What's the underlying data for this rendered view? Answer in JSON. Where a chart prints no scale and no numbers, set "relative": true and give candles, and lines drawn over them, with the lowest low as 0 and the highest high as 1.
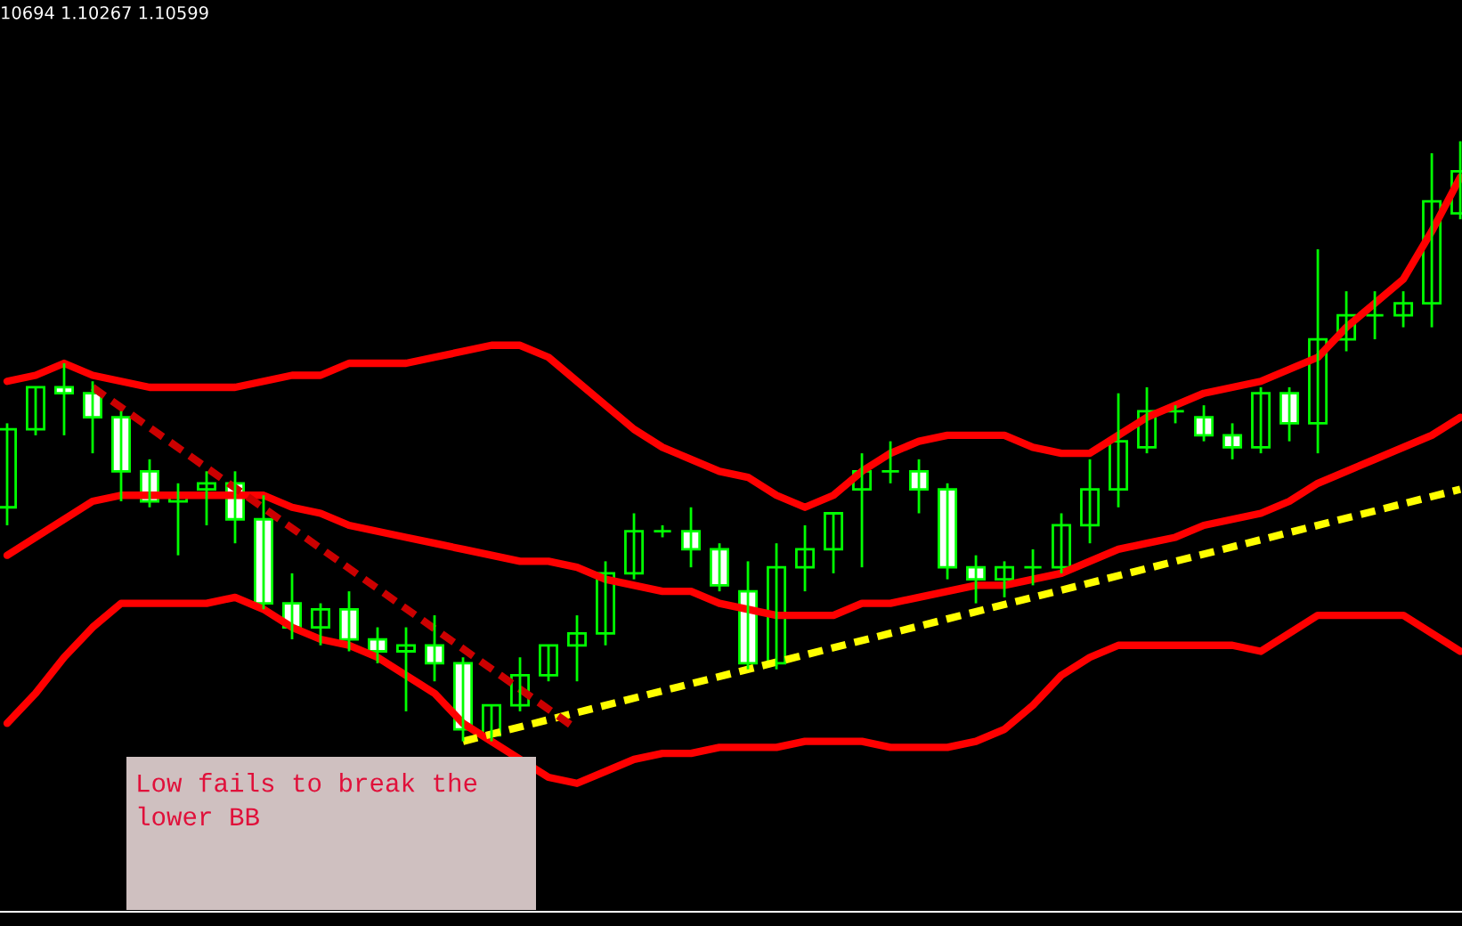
{
  "chart_data": {
    "type": "candlestick",
    "relative": true,
    "color": "#00ff00",
    "categories": [
      null,
      null,
      null,
      null,
      null,
      null,
      null,
      null,
      null,
      null,
      null,
      null,
      null,
      null,
      null,
      null,
      null,
      null,
      null,
      null,
      null,
      null,
      null,
      null,
      null,
      null,
      null,
      null,
      null,
      null,
      null,
      null,
      null,
      null,
      null,
      null,
      null,
      null,
      null,
      null,
      null,
      null,
      null,
      null,
      null,
      null,
      null,
      null,
      null,
      null,
      null,
      null
    ],
    "ohlc": [
      [
        0.39,
        0.53,
        0.36,
        0.52
      ],
      [
        0.52,
        0.59,
        0.51,
        0.59
      ],
      [
        0.59,
        0.63,
        0.51,
        0.58
      ],
      [
        0.58,
        0.6,
        0.48,
        0.54
      ],
      [
        0.54,
        0.55,
        0.4,
        0.45
      ],
      [
        0.45,
        0.47,
        0.39,
        0.4
      ],
      [
        0.4,
        0.43,
        0.31,
        0.41
      ],
      [
        0.42,
        0.45,
        0.36,
        0.43
      ],
      [
        0.43,
        0.45,
        0.33,
        0.37
      ],
      [
        0.37,
        0.41,
        0.22,
        0.23
      ],
      [
        0.23,
        0.28,
        0.17,
        0.19
      ],
      [
        0.19,
        0.23,
        0.16,
        0.22
      ],
      [
        0.22,
        0.25,
        0.15,
        0.17
      ],
      [
        0.17,
        0.19,
        0.13,
        0.15
      ],
      [
        0.15,
        0.19,
        0.05,
        0.16
      ],
      [
        0.16,
        0.21,
        0.1,
        0.13
      ],
      [
        0.13,
        0.14,
        0.0,
        0.02
      ],
      [
        0.01,
        0.06,
        0.0,
        0.06
      ],
      [
        0.06,
        0.14,
        0.05,
        0.11
      ],
      [
        0.11,
        0.16,
        0.1,
        0.16
      ],
      [
        0.16,
        0.21,
        0.1,
        0.18
      ],
      [
        0.18,
        0.3,
        0.16,
        0.28
      ],
      [
        0.28,
        0.38,
        0.27,
        0.35
      ],
      [
        0.35,
        0.36,
        0.34,
        0.35
      ],
      [
        0.35,
        0.39,
        0.29,
        0.32
      ],
      [
        0.32,
        0.33,
        0.25,
        0.26
      ],
      [
        0.25,
        0.3,
        0.12,
        0.13
      ],
      [
        0.13,
        0.33,
        0.12,
        0.29
      ],
      [
        0.29,
        0.36,
        0.25,
        0.32
      ],
      [
        0.32,
        0.38,
        0.28,
        0.38
      ],
      [
        0.42,
        0.48,
        0.29,
        0.45
      ],
      [
        0.45,
        0.5,
        0.43,
        0.45
      ],
      [
        0.45,
        0.47,
        0.38,
        0.42
      ],
      [
        0.42,
        0.43,
        0.27,
        0.29
      ],
      [
        0.29,
        0.31,
        0.23,
        0.27
      ],
      [
        0.27,
        0.3,
        0.24,
        0.29
      ],
      [
        0.29,
        0.32,
        0.26,
        0.29
      ],
      [
        0.29,
        0.38,
        0.28,
        0.36
      ],
      [
        0.36,
        0.47,
        0.33,
        0.42
      ],
      [
        0.42,
        0.58,
        0.39,
        0.5
      ],
      [
        0.49,
        0.59,
        0.48,
        0.55
      ],
      [
        0.55,
        0.56,
        0.53,
        0.55
      ],
      [
        0.54,
        0.56,
        0.5,
        0.51
      ],
      [
        0.51,
        0.53,
        0.47,
        0.49
      ],
      [
        0.49,
        0.59,
        0.48,
        0.58
      ],
      [
        0.58,
        0.59,
        0.5,
        0.53
      ],
      [
        0.53,
        0.82,
        0.48,
        0.67
      ],
      [
        0.67,
        0.75,
        0.65,
        0.71
      ],
      [
        0.71,
        0.75,
        0.67,
        0.71
      ],
      [
        0.71,
        0.75,
        0.69,
        0.73
      ],
      [
        0.73,
        0.98,
        0.69,
        0.9
      ],
      [
        0.88,
        1.0,
        0.87,
        0.95
      ]
    ],
    "series": [
      {
        "type": "line",
        "color": "#ff0000",
        "line_style": "solid",
        "values": [
          0.6,
          0.61,
          0.63,
          0.61,
          0.6,
          0.59,
          0.59,
          0.59,
          0.59,
          0.6,
          0.61,
          0.61,
          0.63,
          0.63,
          0.63,
          0.64,
          0.65,
          0.66,
          0.66,
          0.64,
          0.6,
          0.56,
          0.52,
          0.49,
          0.47,
          0.45,
          0.44,
          0.41,
          0.39,
          0.41,
          0.45,
          0.48,
          0.5,
          0.51,
          0.51,
          0.51,
          0.49,
          0.48,
          0.48,
          0.51,
          0.54,
          0.56,
          0.58,
          0.59,
          0.6,
          0.62,
          0.64,
          0.69,
          0.73,
          0.77,
          0.85,
          0.94
        ]
      },
      {
        "type": "line",
        "color": "#ff0000",
        "line_style": "solid",
        "values": [
          0.31,
          0.34,
          0.37,
          0.4,
          0.41,
          0.41,
          0.41,
          0.41,
          0.41,
          0.41,
          0.39,
          0.38,
          0.36,
          0.35,
          0.34,
          0.33,
          0.32,
          0.31,
          0.3,
          0.3,
          0.29,
          0.27,
          0.26,
          0.25,
          0.25,
          0.23,
          0.22,
          0.21,
          0.21,
          0.21,
          0.23,
          0.23,
          0.24,
          0.25,
          0.26,
          0.26,
          0.27,
          0.28,
          0.3,
          0.32,
          0.33,
          0.34,
          0.36,
          0.37,
          0.38,
          0.4,
          0.43,
          0.45,
          0.47,
          0.49,
          0.51,
          0.54
        ]
      },
      {
        "type": "line",
        "color": "#ff0000",
        "line_style": "solid",
        "values": [
          0.03,
          0.08,
          0.14,
          0.19,
          0.23,
          0.23,
          0.23,
          0.23,
          0.24,
          0.22,
          0.19,
          0.17,
          0.16,
          0.14,
          0.11,
          0.08,
          0.03,
          null,
          null,
          -0.06,
          -0.07,
          -0.05,
          -0.03,
          -0.02,
          -0.02,
          -0.01,
          -0.01,
          -0.01,
          0.0,
          0.0,
          0.0,
          -0.01,
          -0.01,
          -0.01,
          0.0,
          0.02,
          0.06,
          0.11,
          0.14,
          0.16,
          0.16,
          0.16,
          0.16,
          0.16,
          0.15,
          0.18,
          0.21,
          0.21,
          0.21,
          0.21,
          0.18,
          0.15
        ]
      },
      {
        "type": "line",
        "color": "#ffff00",
        "line_style": "dashed",
        "values": [
          null,
          null,
          null,
          null,
          null,
          null,
          null,
          null,
          null,
          null,
          null,
          null,
          null,
          null,
          null,
          null,
          0.0,
          null,
          null,
          null,
          null,
          null,
          null,
          null,
          null,
          null,
          null,
          null,
          null,
          null,
          null,
          null,
          null,
          null,
          null,
          null,
          null,
          null,
          null,
          null,
          null,
          null,
          null,
          null,
          null,
          null,
          null,
          null,
          null,
          null,
          null,
          0.42
        ]
      },
      {
        "type": "line",
        "color": "#cc0000",
        "line_style": "dashed",
        "values": [
          null,
          null,
          null,
          0.59,
          null,
          null,
          null,
          null,
          null,
          null,
          null,
          null,
          null,
          null,
          null,
          null,
          null,
          null,
          null,
          null,
          0.02,
          null,
          null,
          null,
          null,
          null,
          null,
          null,
          null,
          null,
          null,
          null,
          null,
          null,
          null,
          null,
          null,
          null,
          null,
          null,
          null,
          null,
          null,
          null,
          null,
          null,
          null,
          null,
          null,
          null,
          null,
          null
        ]
      }
    ],
    "annotations": [
      "10694 1.10267 1.10599",
      "Low fails to break the lower BB"
    ]
  }
}
